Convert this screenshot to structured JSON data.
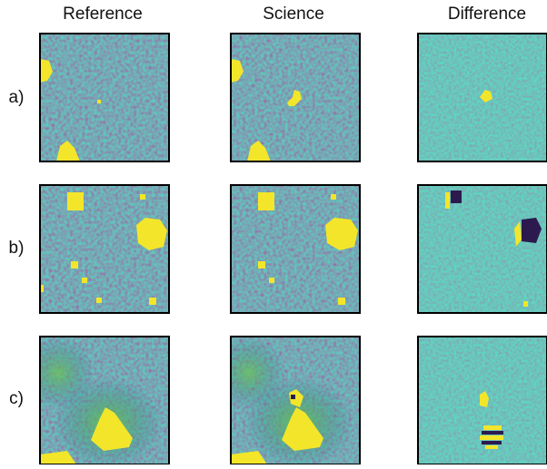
{
  "columns": [
    "Reference",
    "Science",
    "Difference"
  ],
  "rows": [
    "a)",
    "b)",
    "c)"
  ]
}
